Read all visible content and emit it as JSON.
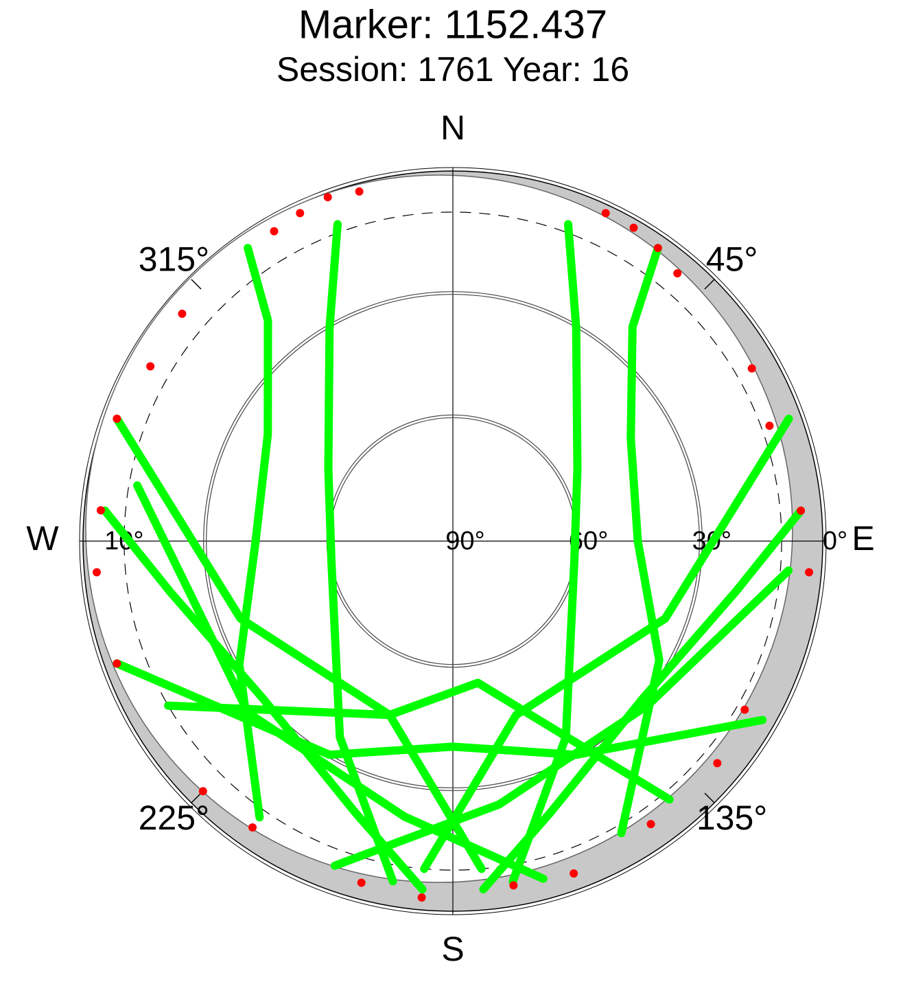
{
  "chart_data": {
    "type": "skyplot",
    "title": "Marker: 1152.437",
    "subtitle": "Session: 1761 Year: 16",
    "rlim": [
      90,
      0
    ],
    "rticks": [
      {
        "value": 0,
        "label": "0°"
      },
      {
        "value": 30,
        "label": "30°"
      },
      {
        "value": 60,
        "label": "60°"
      },
      {
        "value": 90,
        "label": "90°"
      }
    ],
    "elevation_mask": {
      "value": 10,
      "label": "10°"
    },
    "azimuth_ticks": [
      {
        "value": 45,
        "label": "45°"
      },
      {
        "value": 135,
        "label": "135°"
      },
      {
        "value": 225,
        "label": "225°"
      },
      {
        "value": 315,
        "label": "315°"
      }
    ],
    "cardinals": [
      {
        "value": 0,
        "label": "N"
      },
      {
        "value": 90,
        "label": "E"
      },
      {
        "value": 180,
        "label": "S"
      },
      {
        "value": 270,
        "label": "W"
      }
    ],
    "series": [
      {
        "color": "#00ff00",
        "azimuth": [
          325,
          320,
          300,
          270,
          240,
          215
        ],
        "elevation": [
          3,
          20,
          38,
          42,
          30,
          8
        ]
      },
      {
        "color": "#00ff00",
        "azimuth": [
          35,
          40,
          60,
          90,
          120,
          150
        ],
        "elevation": [
          3,
          22,
          40,
          45,
          32,
          8
        ]
      },
      {
        "color": "#00ff00",
        "azimuth": [
          20,
          30,
          60,
          100,
          150,
          170
        ],
        "elevation": [
          8,
          30,
          55,
          60,
          35,
          6
        ]
      },
      {
        "color": "#00ff00",
        "azimuth": [
          340,
          330,
          300,
          260,
          210,
          190
        ],
        "elevation": [
          8,
          30,
          55,
          60,
          35,
          6
        ]
      },
      {
        "color": "#00ff00",
        "azimuth": [
          275,
          260,
          230,
          200,
          185
        ],
        "elevation": [
          5,
          20,
          30,
          20,
          5
        ]
      },
      {
        "color": "#00ff00",
        "azimuth": [
          85,
          100,
          130,
          160,
          175
        ],
        "elevation": [
          5,
          20,
          30,
          20,
          5
        ]
      },
      {
        "color": "#00ff00",
        "azimuth": [
          290,
          250,
          200,
          175
        ],
        "elevation": [
          3,
          35,
          45,
          10
        ]
      },
      {
        "color": "#00ff00",
        "azimuth": [
          70,
          110,
          160,
          185
        ],
        "elevation": [
          3,
          35,
          45,
          10
        ]
      },
      {
        "color": "#00ff00",
        "azimuth": [
          250,
          210,
          180,
          150,
          120
        ],
        "elevation": [
          3,
          30,
          40,
          30,
          3
        ]
      },
      {
        "color": "#00ff00",
        "azimuth": [
          240,
          200,
          170,
          140
        ],
        "elevation": [
          10,
          45,
          55,
          8
        ]
      },
      {
        "color": "#00ff00",
        "azimuth": [
          280,
          230,
          190,
          165
        ],
        "elevation": [
          12,
          25,
          22,
          5
        ]
      },
      {
        "color": "#00ff00",
        "azimuth": [
          95,
          130,
          170,
          200
        ],
        "elevation": [
          8,
          28,
          25,
          6
        ]
      }
    ],
    "low_points": {
      "color": "#ff0000",
      "azimuth": [
        330,
        335,
        340,
        345,
        25,
        30,
        35,
        40,
        300,
        310,
        290,
        275,
        265,
        250,
        225,
        215,
        195,
        185,
        170,
        160,
        145,
        130,
        120,
        95,
        85,
        70,
        60
      ],
      "elevation": [
        3,
        2,
        1,
        2,
        2,
        2,
        3,
        5,
        5,
        4,
        3,
        4,
        3,
        3,
        4,
        5,
        4,
        3,
        5,
        4,
        6,
        6,
        8,
        3,
        5,
        8,
        6
      ]
    }
  }
}
